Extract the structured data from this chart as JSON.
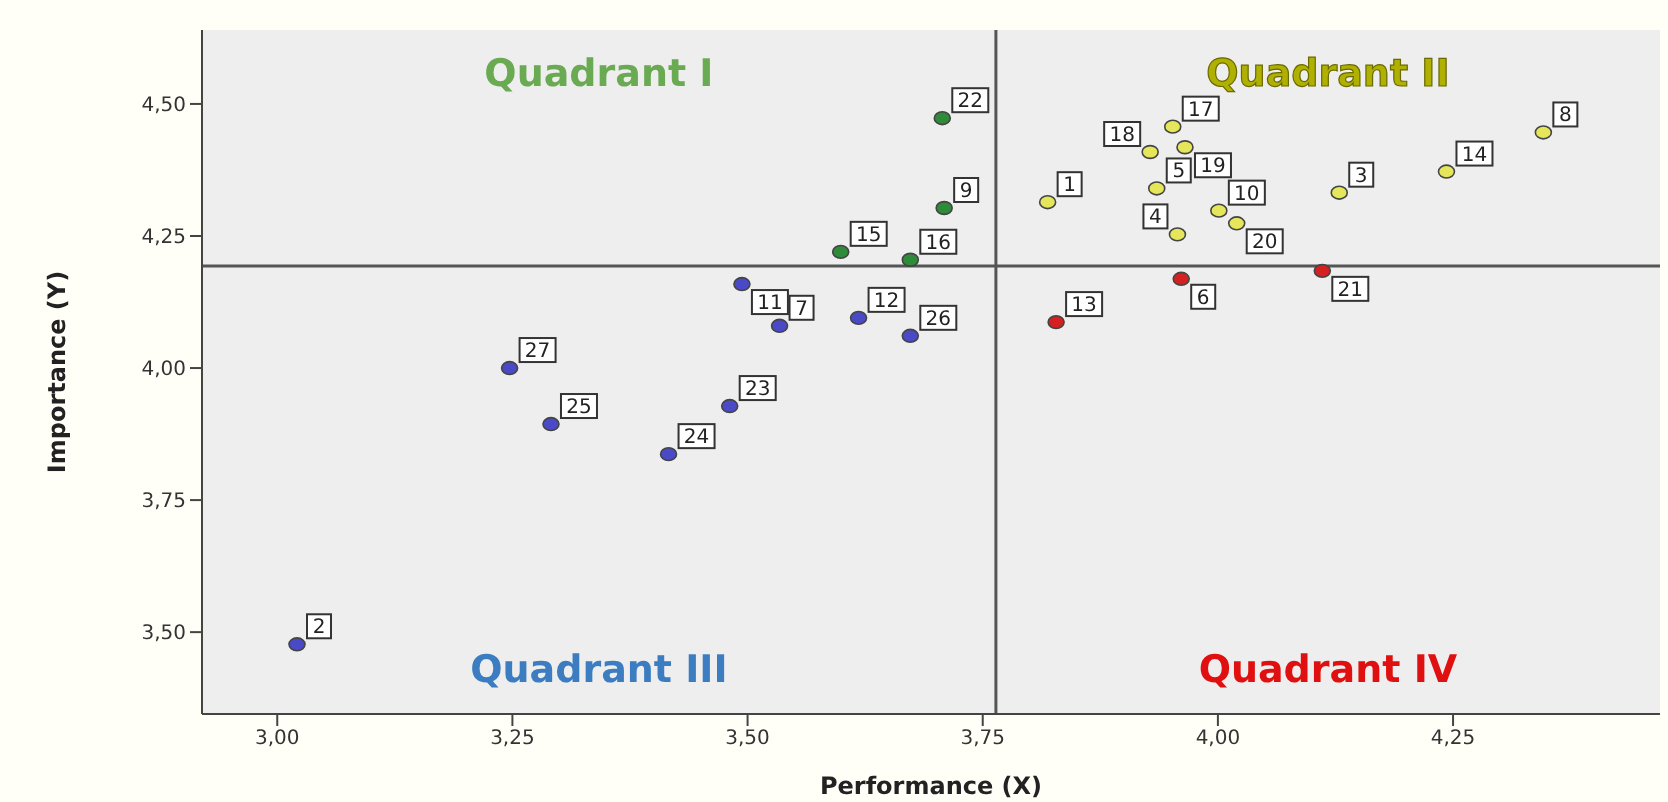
{
  "chart_data": {
    "type": "scatter",
    "xlabel": "Performance (X)",
    "ylabel": "Importance (Y)",
    "xlim": [
      2.92,
      4.47
    ],
    "ylim": [
      3.345,
      4.64
    ],
    "xticks": [
      {
        "value": 3,
        "label": "3,00"
      },
      {
        "value": 3.25,
        "label": "3,25"
      },
      {
        "value": 3.5,
        "label": "3,50"
      },
      {
        "value": 3.75,
        "label": "3,75"
      },
      {
        "value": 4,
        "label": "4,00"
      },
      {
        "value": 4.25,
        "label": "4,25"
      }
    ],
    "yticks": [
      {
        "value": 3.5,
        "label": "3,50"
      },
      {
        "value": 3.75,
        "label": "3,75"
      },
      {
        "value": 4,
        "label": "4,00"
      },
      {
        "value": 4.25,
        "label": "4,25"
      },
      {
        "value": 4.5,
        "label": "4,50"
      }
    ],
    "grid": false,
    "legend": false,
    "marker": "circle",
    "ref_lines": [
      {
        "axis": "x",
        "value": 3.764,
        "color": "#555555"
      },
      {
        "axis": "y",
        "value": 4.193,
        "color": "#555555"
      }
    ],
    "annotations": [
      "Quadrant I",
      "Quadrant II",
      "Quadrant III",
      "Quadrant IV",
      {
        "text": "15",
        "x": 3.599,
        "y": 4.22
      },
      {
        "text": "16",
        "x": 3.673,
        "y": 4.205
      },
      {
        "text": "9",
        "x": 3.709,
        "y": 4.303
      },
      {
        "text": "22",
        "x": 3.707,
        "y": 4.473
      },
      {
        "text": "1",
        "x": 3.819,
        "y": 4.314
      },
      {
        "text": "17",
        "x": 3.952,
        "y": 4.457
      },
      {
        "text": "19",
        "x": 3.965,
        "y": 4.418
      },
      {
        "text": "18",
        "x": 3.928,
        "y": 4.409
      },
      {
        "text": "5",
        "x": 3.935,
        "y": 4.34
      },
      {
        "text": "10",
        "x": 4.001,
        "y": 4.298
      },
      {
        "text": "20",
        "x": 4.02,
        "y": 4.274
      },
      {
        "text": "4",
        "x": 3.957,
        "y": 4.253
      },
      {
        "text": "3",
        "x": 4.129,
        "y": 4.332
      },
      {
        "text": "14",
        "x": 4.243,
        "y": 4.372
      },
      {
        "text": "8",
        "x": 4.346,
        "y": 4.446
      },
      {
        "text": "2",
        "x": 3.021,
        "y": 3.477
      },
      {
        "text": "27",
        "x": 3.247,
        "y": 4.0
      },
      {
        "text": "25",
        "x": 3.291,
        "y": 3.894
      },
      {
        "text": "24",
        "x": 3.416,
        "y": 3.837
      },
      {
        "text": "23",
        "x": 3.481,
        "y": 3.928
      },
      {
        "text": "7",
        "x": 3.534,
        "y": 4.08
      },
      {
        "text": "11",
        "x": 3.494,
        "y": 4.159
      },
      {
        "text": "12",
        "x": 3.618,
        "y": 4.095
      },
      {
        "text": "26",
        "x": 3.673,
        "y": 4.061
      },
      {
        "text": "6",
        "x": 3.961,
        "y": 4.169
      },
      {
        "text": "13",
        "x": 3.828,
        "y": 4.087
      },
      {
        "text": "21",
        "x": 4.111,
        "y": 4.184
      }
    ],
    "series": [
      {
        "color": "#2e8b3a",
        "x": [
          3.599,
          3.673,
          3.709,
          3.707
        ],
        "values": [
          4.22,
          4.205,
          4.303,
          4.473
        ]
      },
      {
        "color": "#e6e65a",
        "x": [
          3.819,
          3.952,
          3.965,
          3.928,
          3.935,
          4.001,
          4.02,
          3.957,
          4.129,
          4.243,
          4.346
        ],
        "values": [
          4.314,
          4.457,
          4.418,
          4.409,
          4.34,
          4.298,
          4.274,
          4.253,
          4.332,
          4.372,
          4.446
        ]
      },
      {
        "color": "#4a4ac8",
        "x": [
          3.021,
          3.247,
          3.291,
          3.416,
          3.481,
          3.534,
          3.494,
          3.618,
          3.673
        ],
        "values": [
          3.477,
          4.0,
          3.894,
          3.837,
          3.928,
          4.08,
          4.159,
          4.095,
          4.061
        ]
      },
      {
        "color": "#d42020",
        "x": [
          3.961,
          3.828,
          4.111
        ],
        "values": [
          4.169,
          4.087,
          4.184
        ]
      }
    ]
  }
}
